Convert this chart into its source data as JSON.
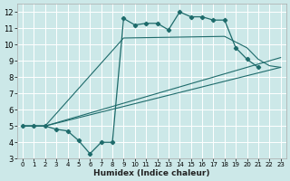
{
  "xlabel": "Humidex (Indice chaleur)",
  "bg_color": "#cce8e8",
  "grid_color": "#b8d8d8",
  "line_color": "#1e6b6b",
  "xlim": [
    -0.5,
    23.5
  ],
  "ylim": [
    3,
    12.5
  ],
  "xticks": [
    0,
    1,
    2,
    3,
    4,
    5,
    6,
    7,
    8,
    9,
    10,
    11,
    12,
    13,
    14,
    15,
    16,
    17,
    18,
    19,
    20,
    21,
    22,
    23
  ],
  "yticks": [
    3,
    4,
    5,
    6,
    7,
    8,
    9,
    10,
    11,
    12
  ],
  "main_x": [
    0,
    1,
    2,
    3,
    4,
    5,
    6,
    7,
    8,
    9,
    10,
    11,
    12,
    13,
    14,
    15,
    16,
    17,
    18,
    19,
    20,
    21
  ],
  "main_y": [
    5.0,
    5.0,
    5.0,
    4.8,
    4.7,
    4.1,
    3.3,
    4.0,
    4.0,
    11.6,
    11.2,
    11.3,
    11.3,
    10.9,
    12.0,
    11.7,
    11.7,
    11.5,
    11.5,
    9.8,
    9.1,
    8.6
  ],
  "line2_x": [
    0,
    2,
    9,
    18,
    20,
    21,
    22,
    23
  ],
  "line2_y": [
    5.0,
    5.0,
    10.4,
    10.5,
    9.8,
    9.1,
    8.7,
    8.6
  ],
  "line3_x": [
    0,
    2,
    23
  ],
  "line3_y": [
    5.0,
    5.0,
    8.6
  ],
  "line4_x": [
    0,
    2,
    23
  ],
  "line4_y": [
    5.0,
    5.0,
    9.2
  ]
}
